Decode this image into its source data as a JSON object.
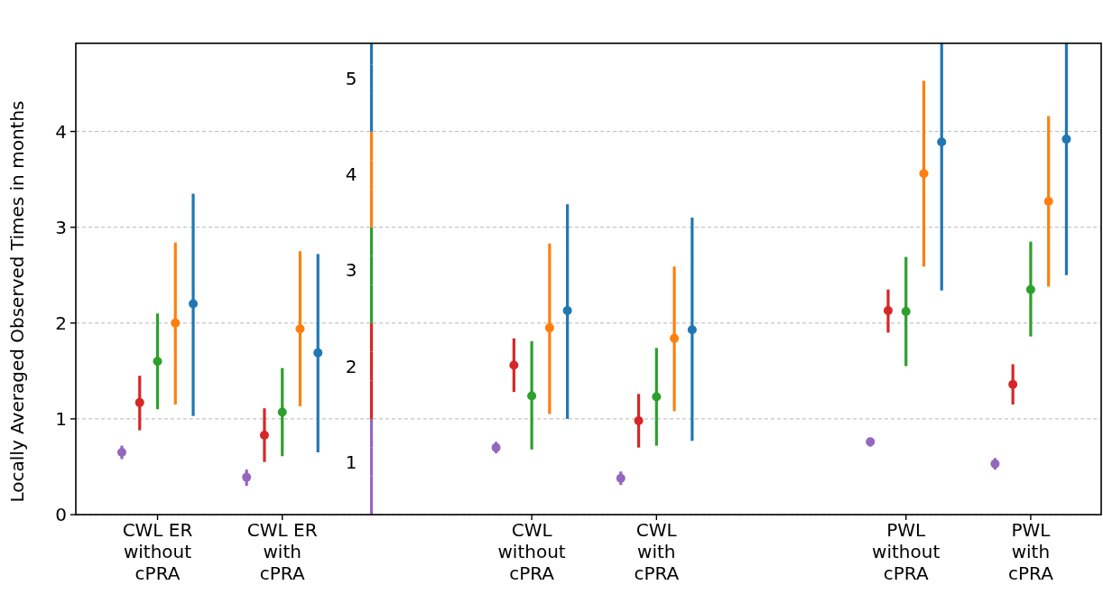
{
  "chart_data": {
    "type": "scatter",
    "ylabel": "Locally Averaged Observed Times in months",
    "categories": [
      "CWL ER\nwithout\ncPRA",
      "CWL ER\nwith\ncPRA",
      null,
      "CWL\nwithout\ncPRA",
      "CWL\nwith\ncPRA",
      null,
      "PWL\nwithout\ncPRA",
      "PWL\nwith\ncPRA"
    ],
    "ylim": [
      0,
      4.92
    ],
    "yticks": [
      0,
      1,
      2,
      3,
      4
    ],
    "grid": "y",
    "legend": "left",
    "marker": "circle",
    "series": [
      {
        "name": "1",
        "color": "#9467bd",
        "values": [
          0.65,
          0.39,
          null,
          0.7,
          0.38,
          null,
          0.76,
          0.53
        ],
        "errors": [
          [
            0.58,
            0.72
          ],
          [
            0.3,
            0.47
          ],
          null,
          [
            0.64,
            0.76
          ],
          [
            0.31,
            0.45
          ],
          null,
          [
            0.71,
            0.8
          ],
          [
            0.47,
            0.59
          ]
        ]
      },
      {
        "name": "2",
        "color": "#d62728",
        "values": [
          1.17,
          0.83,
          null,
          1.56,
          0.98,
          null,
          2.13,
          1.36
        ],
        "errors": [
          [
            0.88,
            1.45
          ],
          [
            0.55,
            1.11
          ],
          null,
          [
            1.28,
            1.84
          ],
          [
            0.7,
            1.26
          ],
          null,
          [
            1.9,
            2.35
          ],
          [
            1.15,
            1.57
          ]
        ]
      },
      {
        "name": "3",
        "color": "#2ca02c",
        "values": [
          1.6,
          1.07,
          null,
          1.24,
          1.23,
          null,
          2.12,
          2.35
        ],
        "errors": [
          [
            1.1,
            2.1
          ],
          [
            0.61,
            1.53
          ],
          null,
          [
            0.68,
            1.81
          ],
          [
            0.72,
            1.74
          ],
          null,
          [
            1.55,
            2.69
          ],
          [
            1.86,
            2.85
          ]
        ]
      },
      {
        "name": "4",
        "color": "#ff7f0e",
        "values": [
          2.0,
          1.94,
          null,
          1.95,
          1.84,
          null,
          3.56,
          3.27
        ],
        "errors": [
          [
            1.15,
            2.84
          ],
          [
            1.13,
            2.75
          ],
          null,
          [
            1.05,
            2.83
          ],
          [
            1.08,
            2.59
          ],
          null,
          [
            2.59,
            4.53
          ],
          [
            2.38,
            4.16
          ]
        ]
      },
      {
        "name": "5",
        "color": "#1f77b4",
        "values": [
          2.2,
          1.69,
          null,
          2.13,
          1.93,
          null,
          3.89,
          3.92
        ],
        "errors": [
          [
            1.03,
            3.35
          ],
          [
            0.65,
            2.72
          ],
          null,
          [
            1.0,
            3.24
          ],
          [
            0.77,
            3.1
          ],
          null,
          [
            2.34,
            4.92
          ],
          [
            2.5,
            4.92
          ]
        ]
      }
    ]
  }
}
